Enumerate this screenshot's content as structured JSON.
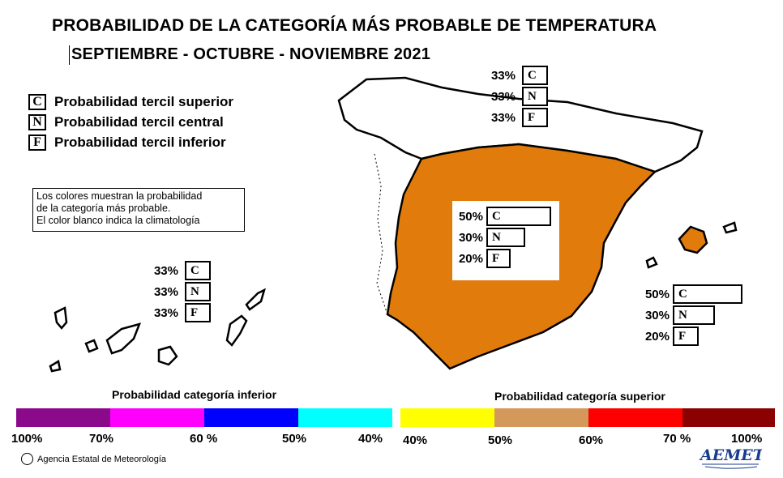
{
  "title": "PROBABILIDAD DE LA CATEGORÍA MÁS PROBABLE DE TEMPERATURA",
  "subtitle": "SEPTIEMBRE - OCTUBRE - NOVIEMBRE 2021",
  "legend": [
    {
      "letter": "C",
      "text": "Probabilidad  tercil superior"
    },
    {
      "letter": "N",
      "text": "Probabilidad  tercil central"
    },
    {
      "letter": "F",
      "text": "Probabilidad  tercil inferior"
    }
  ],
  "note": {
    "line1": "Los colores muestran la probabilidad",
    "line2": "de la categoría más probable.",
    "line3": "El color blanco indica la climatología"
  },
  "colors": {
    "peninsula_fill": "#e07b0c",
    "outline": "#000000"
  },
  "regions": {
    "north": {
      "rows": [
        {
          "pct": "33%",
          "letter": "C",
          "value": 33
        },
        {
          "pct": "33%",
          "letter": "N",
          "value": 33
        },
        {
          "pct": "33%",
          "letter": "F",
          "value": 33
        }
      ]
    },
    "center": {
      "rows": [
        {
          "pct": "50%",
          "letter": "C",
          "value": 50
        },
        {
          "pct": "30%",
          "letter": "N",
          "value": 30
        },
        {
          "pct": "20%",
          "letter": "F",
          "value": 20
        }
      ]
    },
    "balearic": {
      "rows": [
        {
          "pct": "50%",
          "letter": "C",
          "value": 50
        },
        {
          "pct": "30%",
          "letter": "N",
          "value": 30
        },
        {
          "pct": "20%",
          "letter": "F",
          "value": 20
        }
      ]
    },
    "canary": {
      "rows": [
        {
          "pct": "33%",
          "letter": "C",
          "value": 33
        },
        {
          "pct": "33%",
          "letter": "N",
          "value": 33
        },
        {
          "pct": "33%",
          "letter": "F",
          "value": 33
        }
      ]
    }
  },
  "scale": {
    "lower_title": "Probabilidad categoría inferior",
    "upper_title": "Probabilidad categoría superior",
    "lower_colors": [
      "#8b0a8b",
      "#ff00ff",
      "#0000ff",
      "#00ffff"
    ],
    "upper_colors": [
      "#ffff00",
      "#d4985a",
      "#ff0000",
      "#8b0000"
    ],
    "lower_labels": [
      "100%",
      "70%",
      "60 %",
      "50%",
      "40%"
    ],
    "upper_labels": [
      "40%",
      "50%",
      "60%",
      "70 %",
      "100%"
    ]
  },
  "footer": {
    "copyright_symbol": "©",
    "agency": "Agencia Estatal de Meteorología",
    "logo_text": "AEMET"
  }
}
